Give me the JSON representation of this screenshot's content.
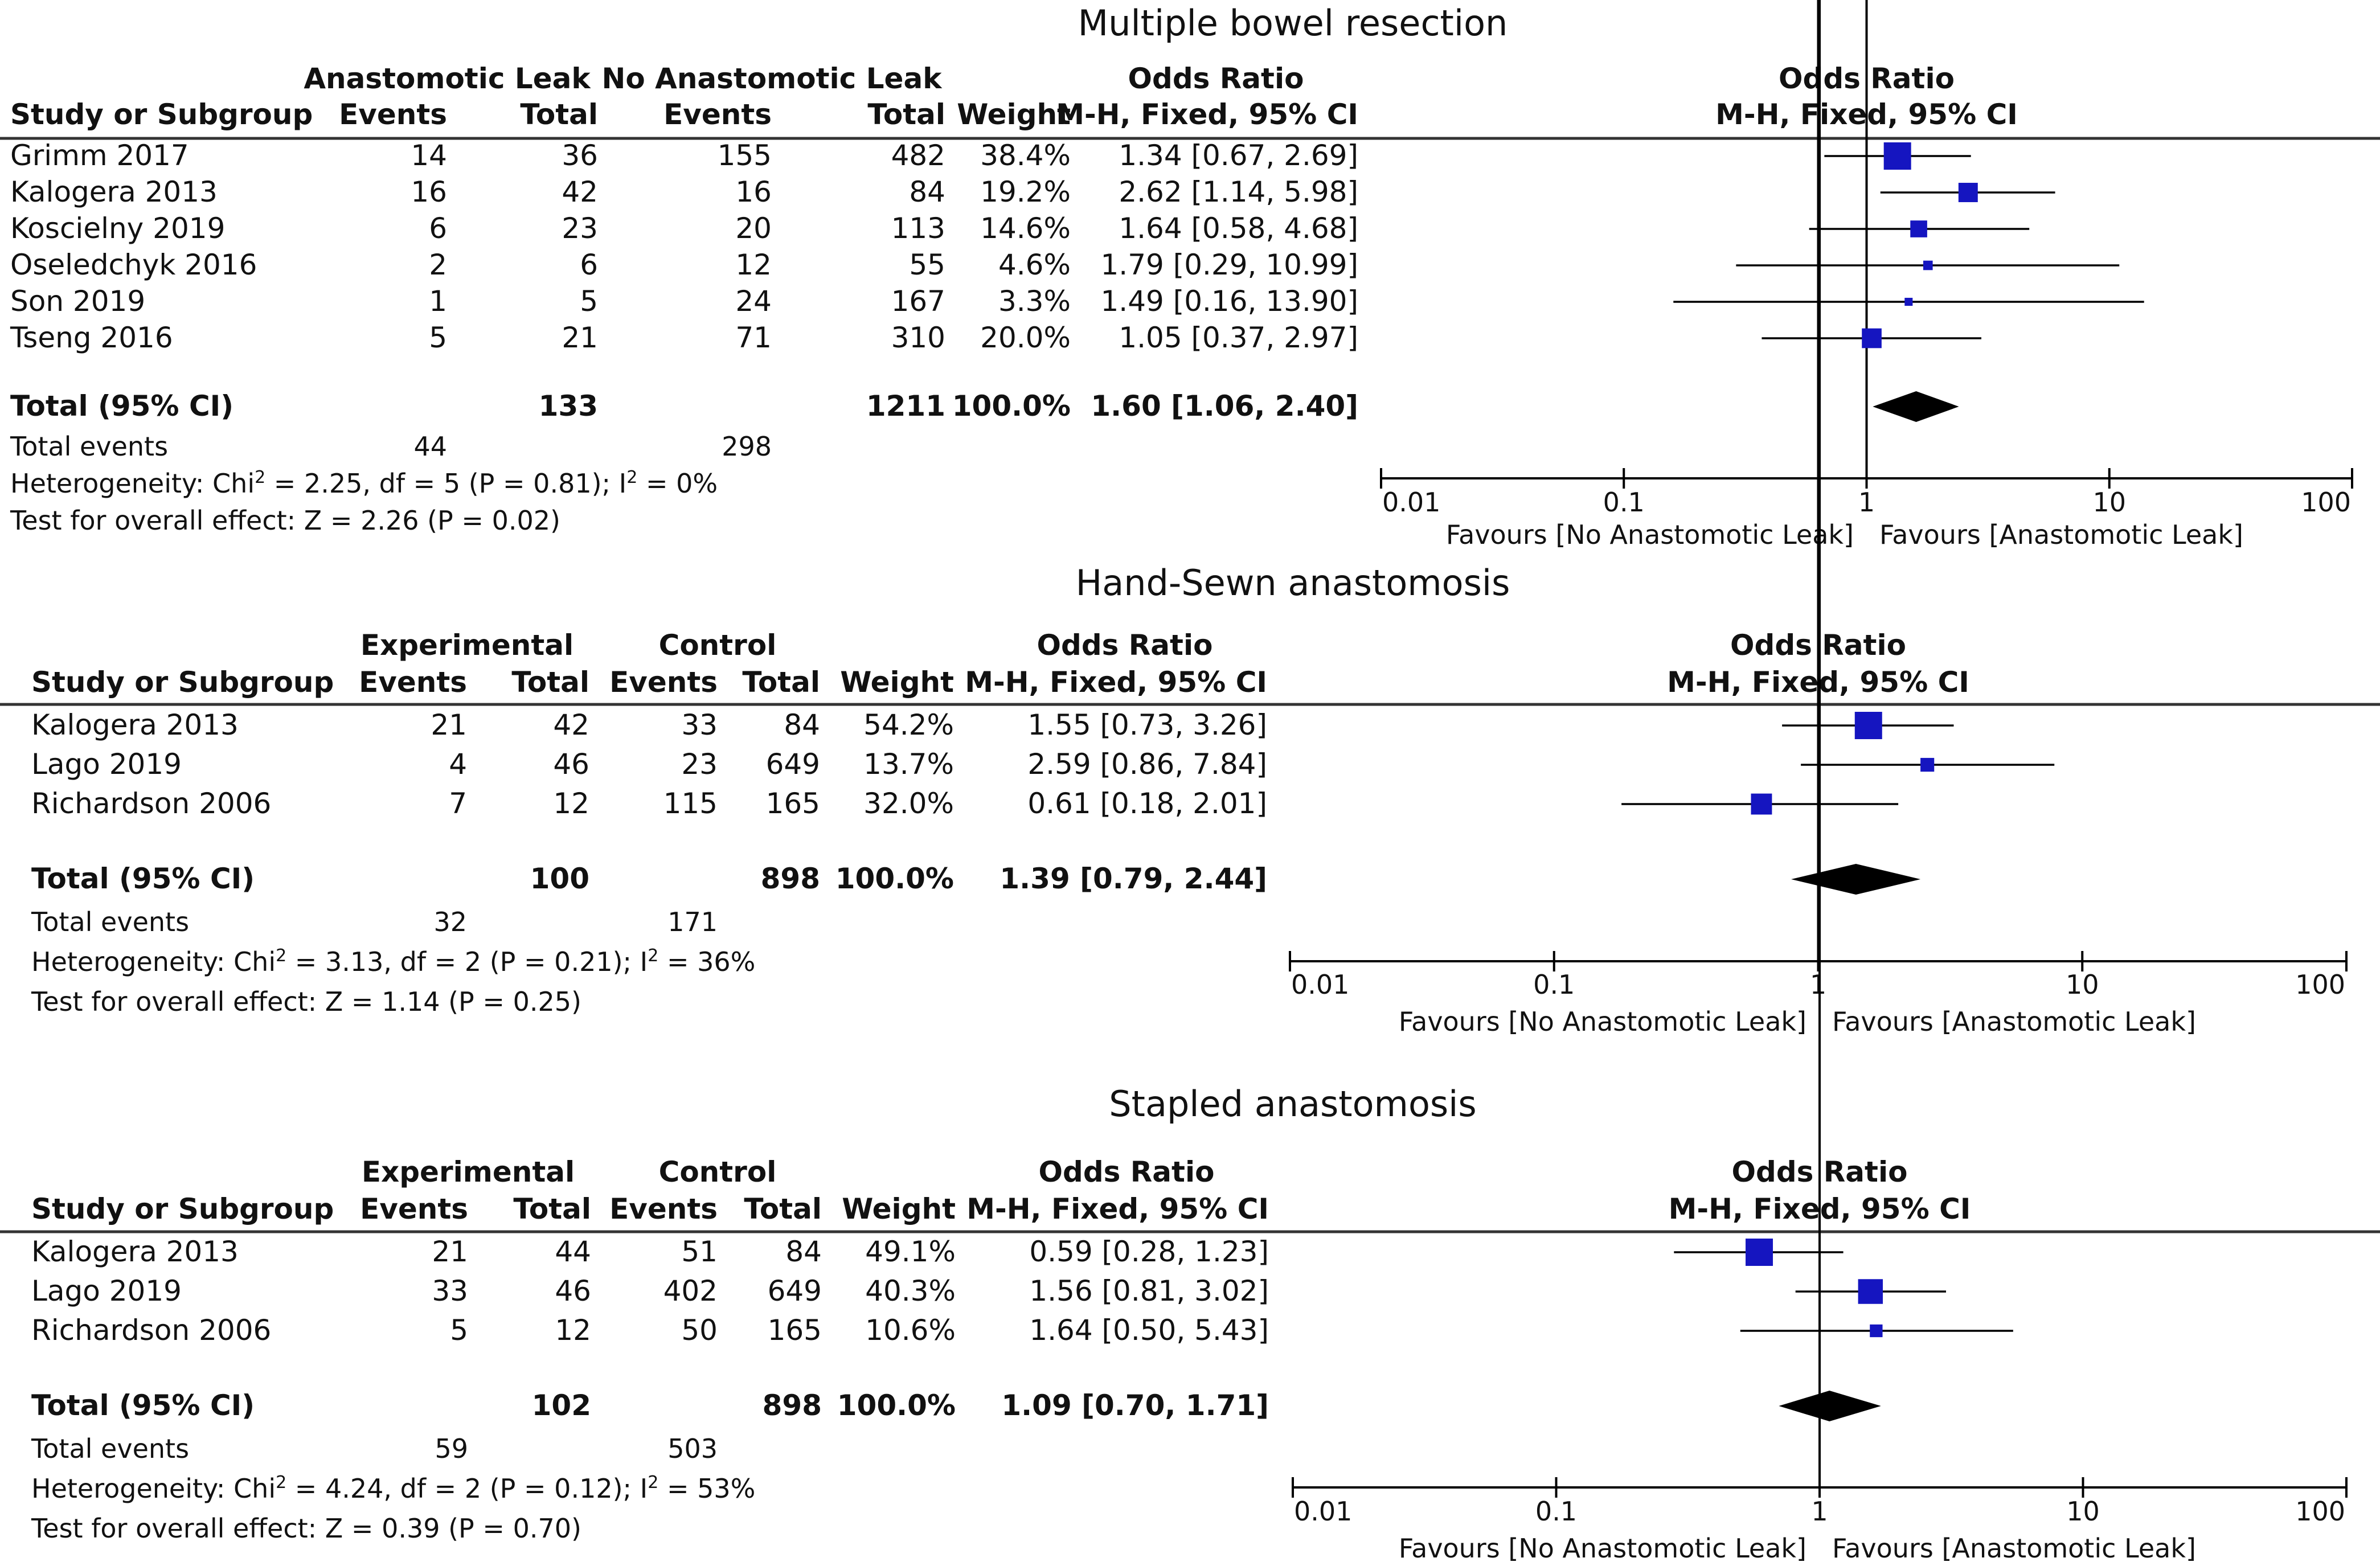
{
  "colors": {
    "square": "#1515c0",
    "diamond": "#000000",
    "text": "#111111"
  },
  "chart_data": [
    {
      "type": "forest",
      "title": "Multiple bowel resection",
      "group_labels": [
        "Anastomotic Leak",
        "No Anastomotic Leak"
      ],
      "columns": [
        "Study or Subgroup",
        "Events",
        "Total",
        "Events",
        "Total",
        "Weight",
        "Odds Ratio",
        "M-H, Fixed, 95% CI",
        "Odds Ratio",
        "M-H, Fixed, 95% CI"
      ],
      "studies": [
        {
          "name": "Grimm 2017",
          "e1": "14",
          "t1": "36",
          "e2": "155",
          "t2": "482",
          "weight": "38.4%",
          "ci_text": "1.34 [0.67, 2.69]",
          "or": 1.34,
          "lo": 0.67,
          "hi": 2.69,
          "w": 38.4
        },
        {
          "name": "Kalogera 2013",
          "e1": "16",
          "t1": "42",
          "e2": "16",
          "t2": "84",
          "weight": "19.2%",
          "ci_text": "2.62 [1.14, 5.98]",
          "or": 2.62,
          "lo": 1.14,
          "hi": 5.98,
          "w": 19.2
        },
        {
          "name": "Koscielny 2019",
          "e1": "6",
          "t1": "23",
          "e2": "20",
          "t2": "113",
          "weight": "14.6%",
          "ci_text": "1.64 [0.58, 4.68]",
          "or": 1.64,
          "lo": 0.58,
          "hi": 4.68,
          "w": 14.6
        },
        {
          "name": "Oseledchyk 2016",
          "e1": "2",
          "t1": "6",
          "e2": "12",
          "t2": "55",
          "weight": "4.6%",
          "ci_text": "1.79 [0.29, 10.99]",
          "or": 1.79,
          "lo": 0.29,
          "hi": 10.99,
          "w": 4.6
        },
        {
          "name": "Son 2019",
          "e1": "1",
          "t1": "5",
          "e2": "24",
          "t2": "167",
          "weight": "3.3%",
          "ci_text": "1.49 [0.16, 13.90]",
          "or": 1.49,
          "lo": 0.16,
          "hi": 13.9,
          "w": 3.3
        },
        {
          "name": "Tseng 2016",
          "e1": "5",
          "t1": "21",
          "e2": "71",
          "t2": "310",
          "weight": "20.0%",
          "ci_text": "1.05 [0.37, 2.97]",
          "or": 1.05,
          "lo": 0.37,
          "hi": 2.97,
          "w": 20.0
        }
      ],
      "total": {
        "label": "Total (95% CI)",
        "t1": "133",
        "t2": "1211",
        "weight": "100.0%",
        "ci_text": "1.60 [1.06, 2.40]",
        "or": 1.6,
        "lo": 1.06,
        "hi": 2.4
      },
      "total_events": {
        "label": "Total events",
        "e1": "44",
        "e2": "298"
      },
      "heterogeneity": {
        "prefix": "Heterogeneity: Chi",
        "mid": " = 2.25, df = 5 (P = 0.81); I",
        "end": " = 0%"
      },
      "overall": "Test for overall effect: Z = 2.26 (P = 0.02)",
      "axis": {
        "scale": "log",
        "ticks": [
          "0.01",
          "0.1",
          "1",
          "10",
          "100"
        ],
        "range": [
          0.01,
          100
        ]
      },
      "favours_left": "Favours [No Anastomotic Leak]",
      "favours_right": "Favours [Anastomotic Leak]"
    },
    {
      "type": "forest",
      "title": "Hand-Sewn anastomosis",
      "group_labels": [
        "Experimental",
        "Control"
      ],
      "columns": [
        "Study or Subgroup",
        "Events",
        "Total",
        "Events",
        "Total",
        "Weight",
        "Odds Ratio",
        "M-H, Fixed, 95% CI",
        "Odds Ratio",
        "M-H, Fixed, 95% CI"
      ],
      "studies": [
        {
          "name": "Kalogera 2013",
          "e1": "21",
          "t1": "42",
          "e2": "33",
          "t2": "84",
          "weight": "54.2%",
          "ci_text": "1.55 [0.73, 3.26]",
          "or": 1.55,
          "lo": 0.73,
          "hi": 3.26,
          "w": 54.2
        },
        {
          "name": "Lago 2019",
          "e1": "4",
          "t1": "46",
          "e2": "23",
          "t2": "649",
          "weight": "13.7%",
          "ci_text": "2.59 [0.86, 7.84]",
          "or": 2.59,
          "lo": 0.86,
          "hi": 7.84,
          "w": 13.7
        },
        {
          "name": "Richardson 2006",
          "e1": "7",
          "t1": "12",
          "e2": "115",
          "t2": "165",
          "weight": "32.0%",
          "ci_text": "0.61 [0.18, 2.01]",
          "or": 0.61,
          "lo": 0.18,
          "hi": 2.01,
          "w": 32.0
        }
      ],
      "total": {
        "label": "Total (95% CI)",
        "t1": "100",
        "t2": "898",
        "weight": "100.0%",
        "ci_text": "1.39 [0.79, 2.44]",
        "or": 1.39,
        "lo": 0.79,
        "hi": 2.44
      },
      "total_events": {
        "label": "Total events",
        "e1": "32",
        "e2": "171"
      },
      "heterogeneity": {
        "prefix": "Heterogeneity: Chi",
        "mid": " = 3.13, df = 2 (P = 0.21); I",
        "end": " = 36%"
      },
      "overall": "Test for overall effect: Z = 1.14 (P = 0.25)",
      "axis": {
        "scale": "log",
        "ticks": [
          "0.01",
          "0.1",
          "1",
          "10",
          "100"
        ],
        "range": [
          0.01,
          100
        ]
      },
      "favours_left": "Favours [No Anastomotic Leak]",
      "favours_right": "Favours [Anastomotic Leak]"
    },
    {
      "type": "forest",
      "title": "Stapled anastomosis",
      "group_labels": [
        "Experimental",
        "Control"
      ],
      "columns": [
        "Study or Subgroup",
        "Events",
        "Total",
        "Events",
        "Total",
        "Weight",
        "Odds Ratio",
        "M-H, Fixed, 95% CI",
        "Odds Ratio",
        "M-H, Fixed, 95% CI"
      ],
      "studies": [
        {
          "name": "Kalogera 2013",
          "e1": "21",
          "t1": "44",
          "e2": "51",
          "t2": "84",
          "weight": "49.1%",
          "ci_text": "0.59 [0.28, 1.23]",
          "or": 0.59,
          "lo": 0.28,
          "hi": 1.23,
          "w": 49.1
        },
        {
          "name": "Lago 2019",
          "e1": "33",
          "t1": "46",
          "e2": "402",
          "t2": "649",
          "weight": "40.3%",
          "ci_text": "1.56 [0.81, 3.02]",
          "or": 1.56,
          "lo": 0.81,
          "hi": 3.02,
          "w": 40.3
        },
        {
          "name": "Richardson 2006",
          "e1": "5",
          "t1": "12",
          "e2": "50",
          "t2": "165",
          "weight": "10.6%",
          "ci_text": "1.64 [0.50, 5.43]",
          "or": 1.64,
          "lo": 0.5,
          "hi": 5.43,
          "w": 10.6
        }
      ],
      "total": {
        "label": "Total (95% CI)",
        "t1": "102",
        "t2": "898",
        "weight": "100.0%",
        "ci_text": "1.09 [0.70, 1.71]",
        "or": 1.09,
        "lo": 0.7,
        "hi": 1.71
      },
      "total_events": {
        "label": "Total events",
        "e1": "59",
        "e2": "503"
      },
      "heterogeneity": {
        "prefix": "Heterogeneity: Chi",
        "mid": " = 4.24, df = 2 (P = 0.12); I",
        "end": " = 53%"
      },
      "overall": "Test for overall effect: Z = 0.39 (P = 0.70)",
      "axis": {
        "scale": "log",
        "ticks": [
          "0.01",
          "0.1",
          "1",
          "10",
          "100"
        ],
        "range": [
          0.01,
          100
        ]
      },
      "favours_left": "Favours [No Anastomotic Leak]",
      "favours_right": "Favours [Anastomotic Leak]"
    }
  ]
}
